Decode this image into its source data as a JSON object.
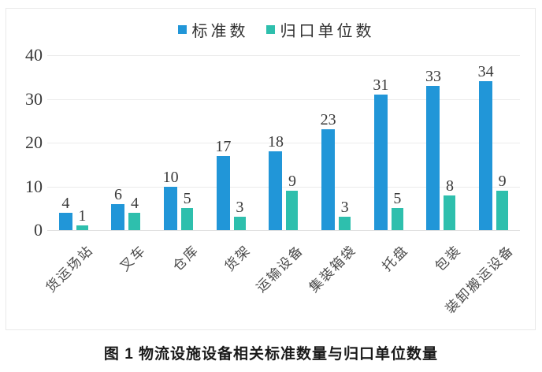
{
  "caption": "图 1 物流设施设备相关标准数量与归口单位数量",
  "colors": {
    "standards_bar": "#2196d8",
    "units_bar": "#2ebfad",
    "gridline": "#ebebeb",
    "frame_border": "#e9e9e9",
    "text": "#3a3a3a"
  },
  "chart_data": {
    "type": "bar",
    "title": "",
    "xlabel": "",
    "ylabel": "",
    "grid": "horizontal",
    "legend_position": "top-center",
    "ylim": [
      0,
      40
    ],
    "yticks": [
      0,
      10,
      20,
      30,
      40
    ],
    "categories": [
      "货运场站",
      "叉车",
      "仓库",
      "货架",
      "运输设备",
      "集装箱袋",
      "托盘",
      "包装",
      "装卸搬运设备"
    ],
    "series": [
      {
        "name": "标准数",
        "color": "#2196d8",
        "values": [
          4,
          6,
          10,
          17,
          18,
          23,
          31,
          33,
          34
        ]
      },
      {
        "name": "归口单位数",
        "color": "#2ebfad",
        "values": [
          1,
          4,
          5,
          3,
          9,
          3,
          5,
          8,
          9
        ]
      }
    ]
  }
}
